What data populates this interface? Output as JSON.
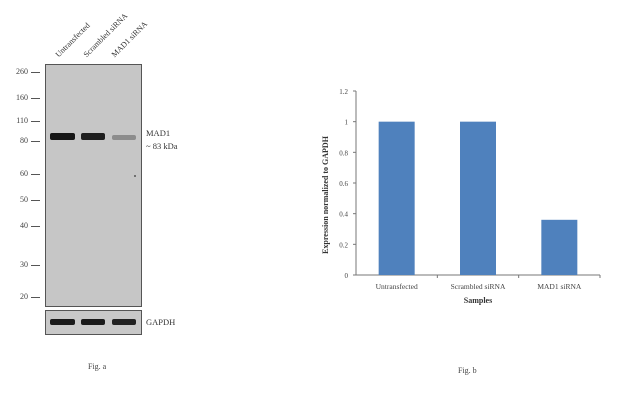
{
  "figure_a": {
    "lane_labels": [
      "Untransfected",
      "Scrambled siRNA",
      "MAD1 siRNA"
    ],
    "mw_markers": [
      "260",
      "160",
      "110",
      "80",
      "60",
      "50",
      "40",
      "30",
      "20"
    ],
    "target_label": "MAD1",
    "target_size": "~ 83 kDa",
    "loading_label": "GAPDH",
    "caption": "Fig. a"
  },
  "figure_b": {
    "caption": "Fig. b"
  },
  "chart_data": {
    "type": "bar",
    "categories": [
      "Untransfected",
      "Scrambled siRNA",
      "MAD1 siRNA"
    ],
    "values": [
      1.0,
      1.0,
      0.36
    ],
    "xlabel": "Samples",
    "ylabel": "Expression normalized to GAPDH",
    "ylim": [
      0,
      1.2
    ],
    "yticks": [
      "0",
      "0.2",
      "0.4",
      "0.6",
      "0.8",
      "1",
      "1.2"
    ],
    "bar_color": "#4f81bd",
    "grid": false
  }
}
